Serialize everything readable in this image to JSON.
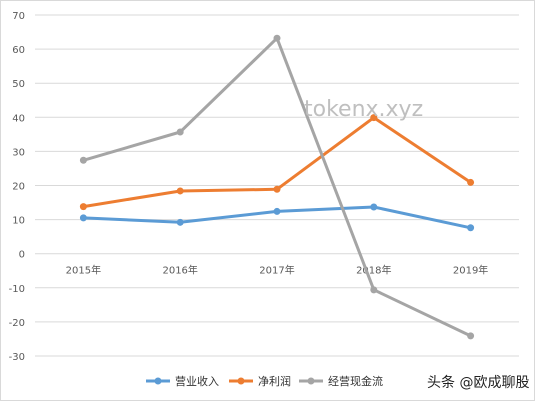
{
  "chart_data": {
    "type": "line",
    "categories": [
      "2015年",
      "2016年",
      "2017年",
      "2018年",
      "2019年"
    ],
    "ylim": [
      -30,
      70
    ],
    "yticks": [
      70,
      60,
      50,
      40,
      30,
      20,
      10,
      0,
      -10,
      -20,
      -30
    ],
    "grid": true,
    "legend_position": "bottom-center",
    "series": [
      {
        "name": "营业收入",
        "color": "#5b9bd5",
        "values": [
          10.5,
          9.2,
          12.4,
          13.7,
          7.6
        ]
      },
      {
        "name": "净利润",
        "color": "#ed7d31",
        "values": [
          13.8,
          18.4,
          18.9,
          39.9,
          20.9
        ]
      },
      {
        "name": "经营现金流",
        "color": "#a5a5a5",
        "values": [
          27.4,
          35.7,
          63.2,
          -10.6,
          -24.1
        ]
      }
    ]
  },
  "watermark": "tokenx.xyz",
  "credit": "头条 @欧成聊股"
}
